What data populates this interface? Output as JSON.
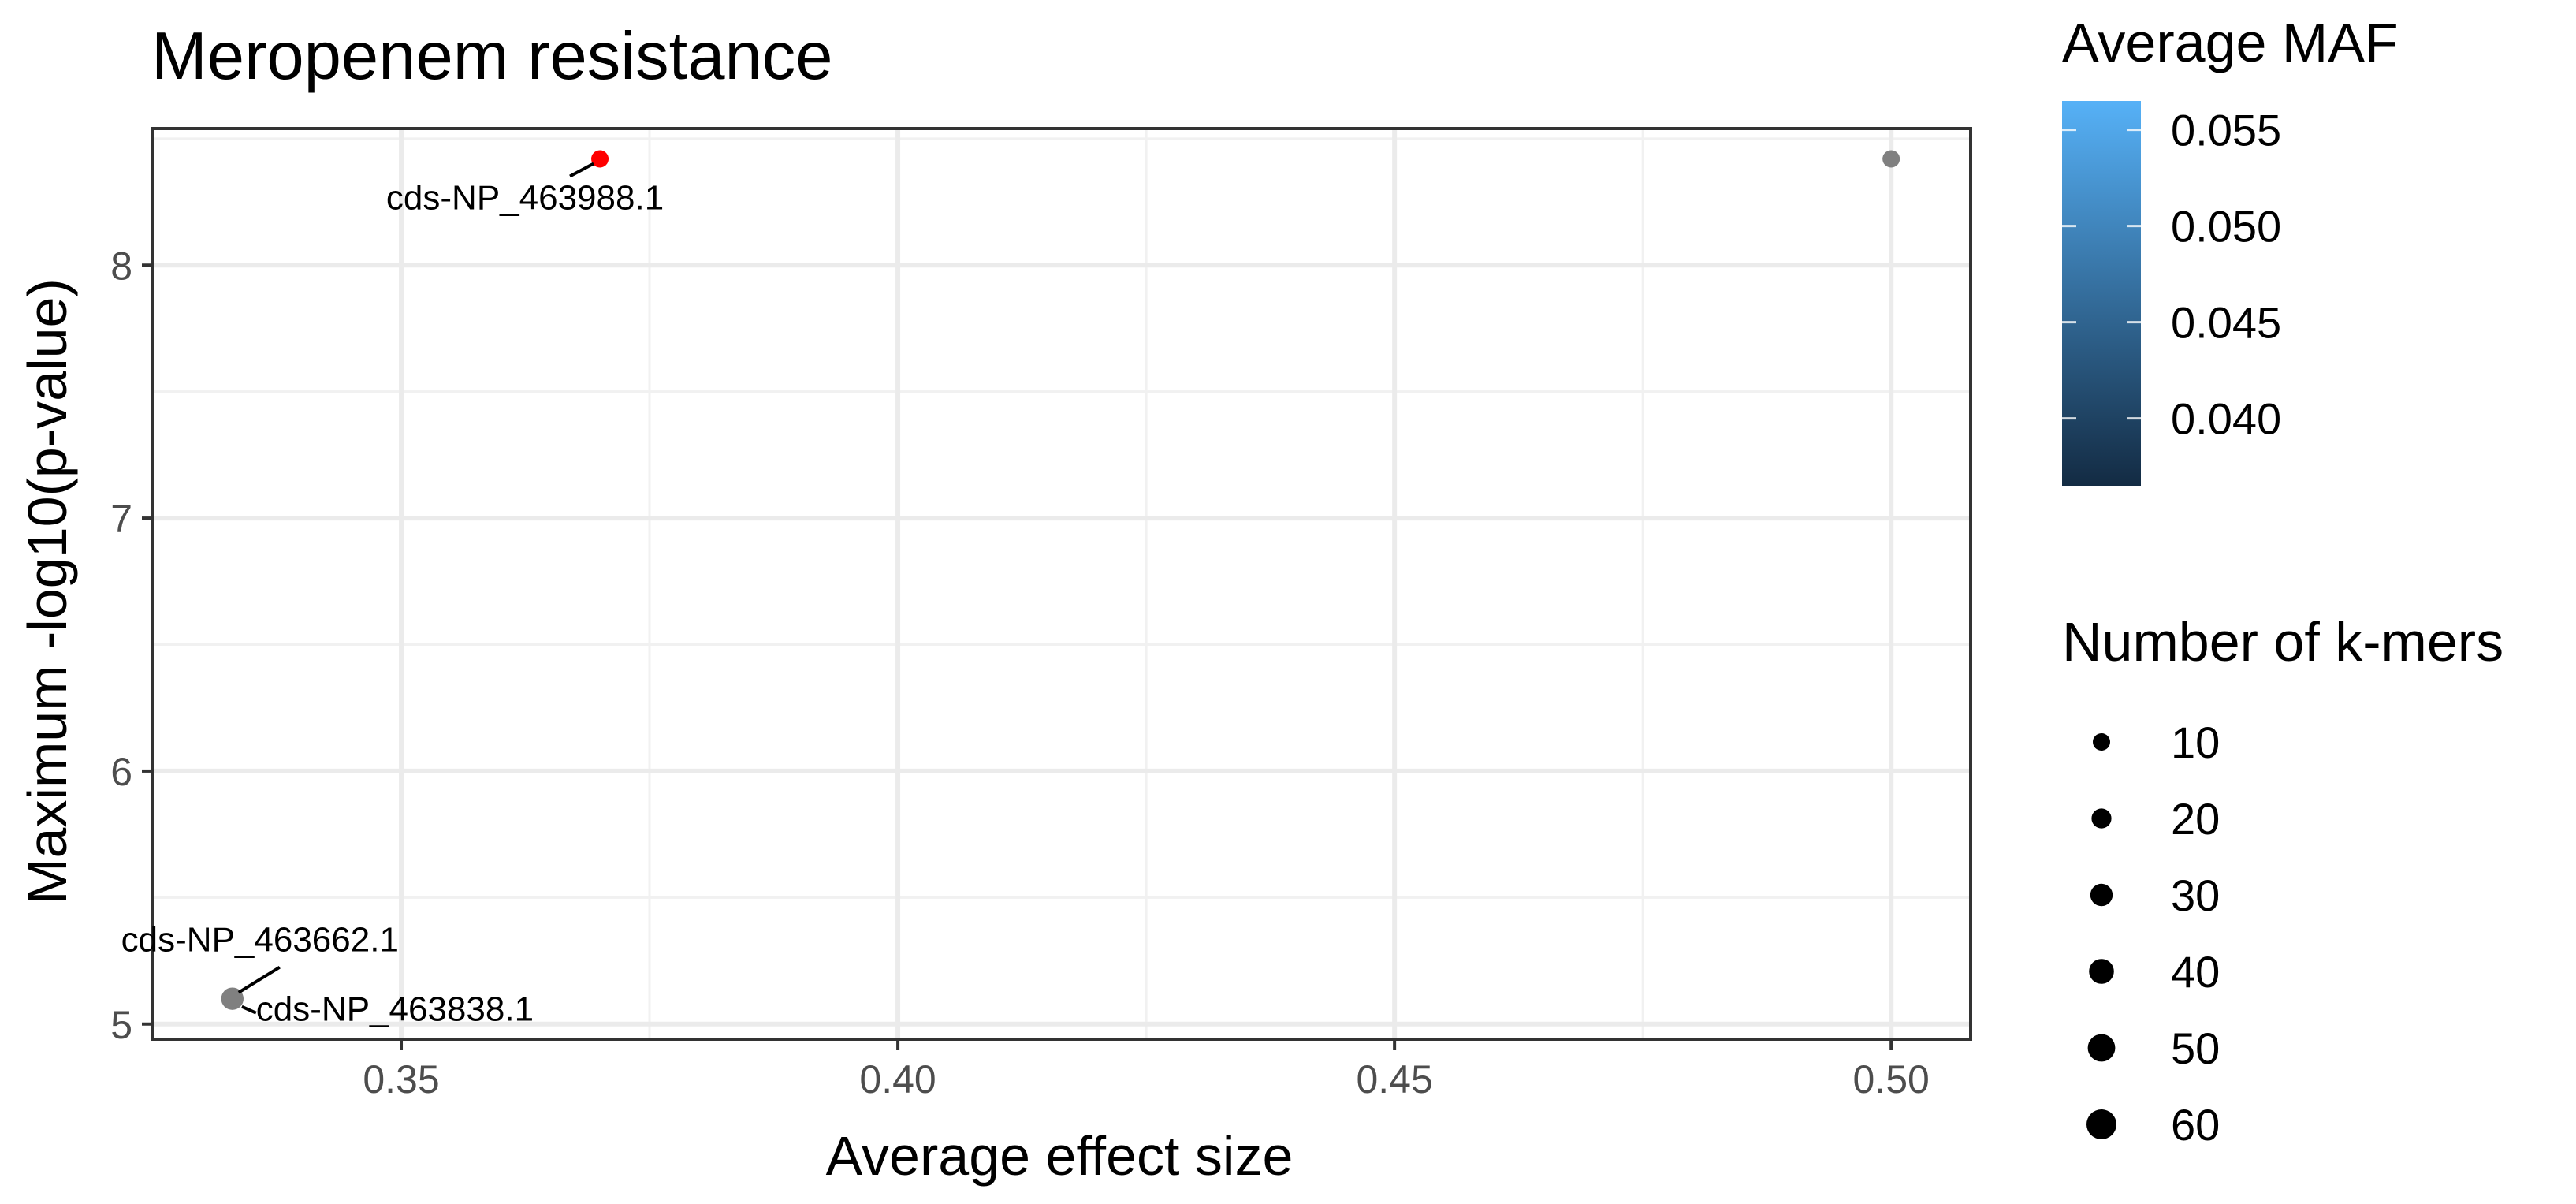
{
  "chart_data": {
    "type": "scatter",
    "title": "Meropenem resistance",
    "xlabel": "Average effect size",
    "ylabel": "Maximum -log10(p-value)",
    "xlim": [
      0.325,
      0.508
    ],
    "ylim": [
      4.94,
      8.54
    ],
    "x_ticks": [
      0.35,
      0.4,
      0.45,
      0.5
    ],
    "x_tick_labels": [
      "0.35",
      "0.40",
      "0.45",
      "0.50"
    ],
    "y_ticks": [
      5,
      6,
      7,
      8
    ],
    "y_tick_labels": [
      "5",
      "6",
      "7",
      "8"
    ],
    "grid": true,
    "points": [
      {
        "x": 0.37,
        "y": 8.42,
        "color": "#ff0000",
        "kmers": 10,
        "label": "cds-NP_463988.1"
      },
      {
        "x": 0.5,
        "y": 8.42,
        "color": "#808080",
        "kmers": 10,
        "label": ""
      },
      {
        "x": 0.333,
        "y": 5.1,
        "color": "#808080",
        "kmers": 30,
        "label": "cds-NP_463662.1"
      },
      {
        "x": 0.333,
        "y": 5.1,
        "color": "#808080",
        "kmers": 30,
        "label": "cds-NP_463838.1"
      }
    ],
    "legend": {
      "placement": "right",
      "color": {
        "title": "Average MAF",
        "low": 0.0365,
        "high": 0.0565,
        "low_color": "#132b43",
        "high_color": "#56b1f7",
        "ticks": [
          0.055,
          0.05,
          0.045,
          0.04
        ],
        "tick_labels": [
          "0.055",
          "0.050",
          "0.045",
          "0.040"
        ]
      },
      "size": {
        "title": "Number of k-mers",
        "values": [
          10,
          20,
          30,
          40,
          50,
          60
        ],
        "labels": [
          "10",
          "20",
          "30",
          "40",
          "50",
          "60"
        ]
      }
    }
  }
}
